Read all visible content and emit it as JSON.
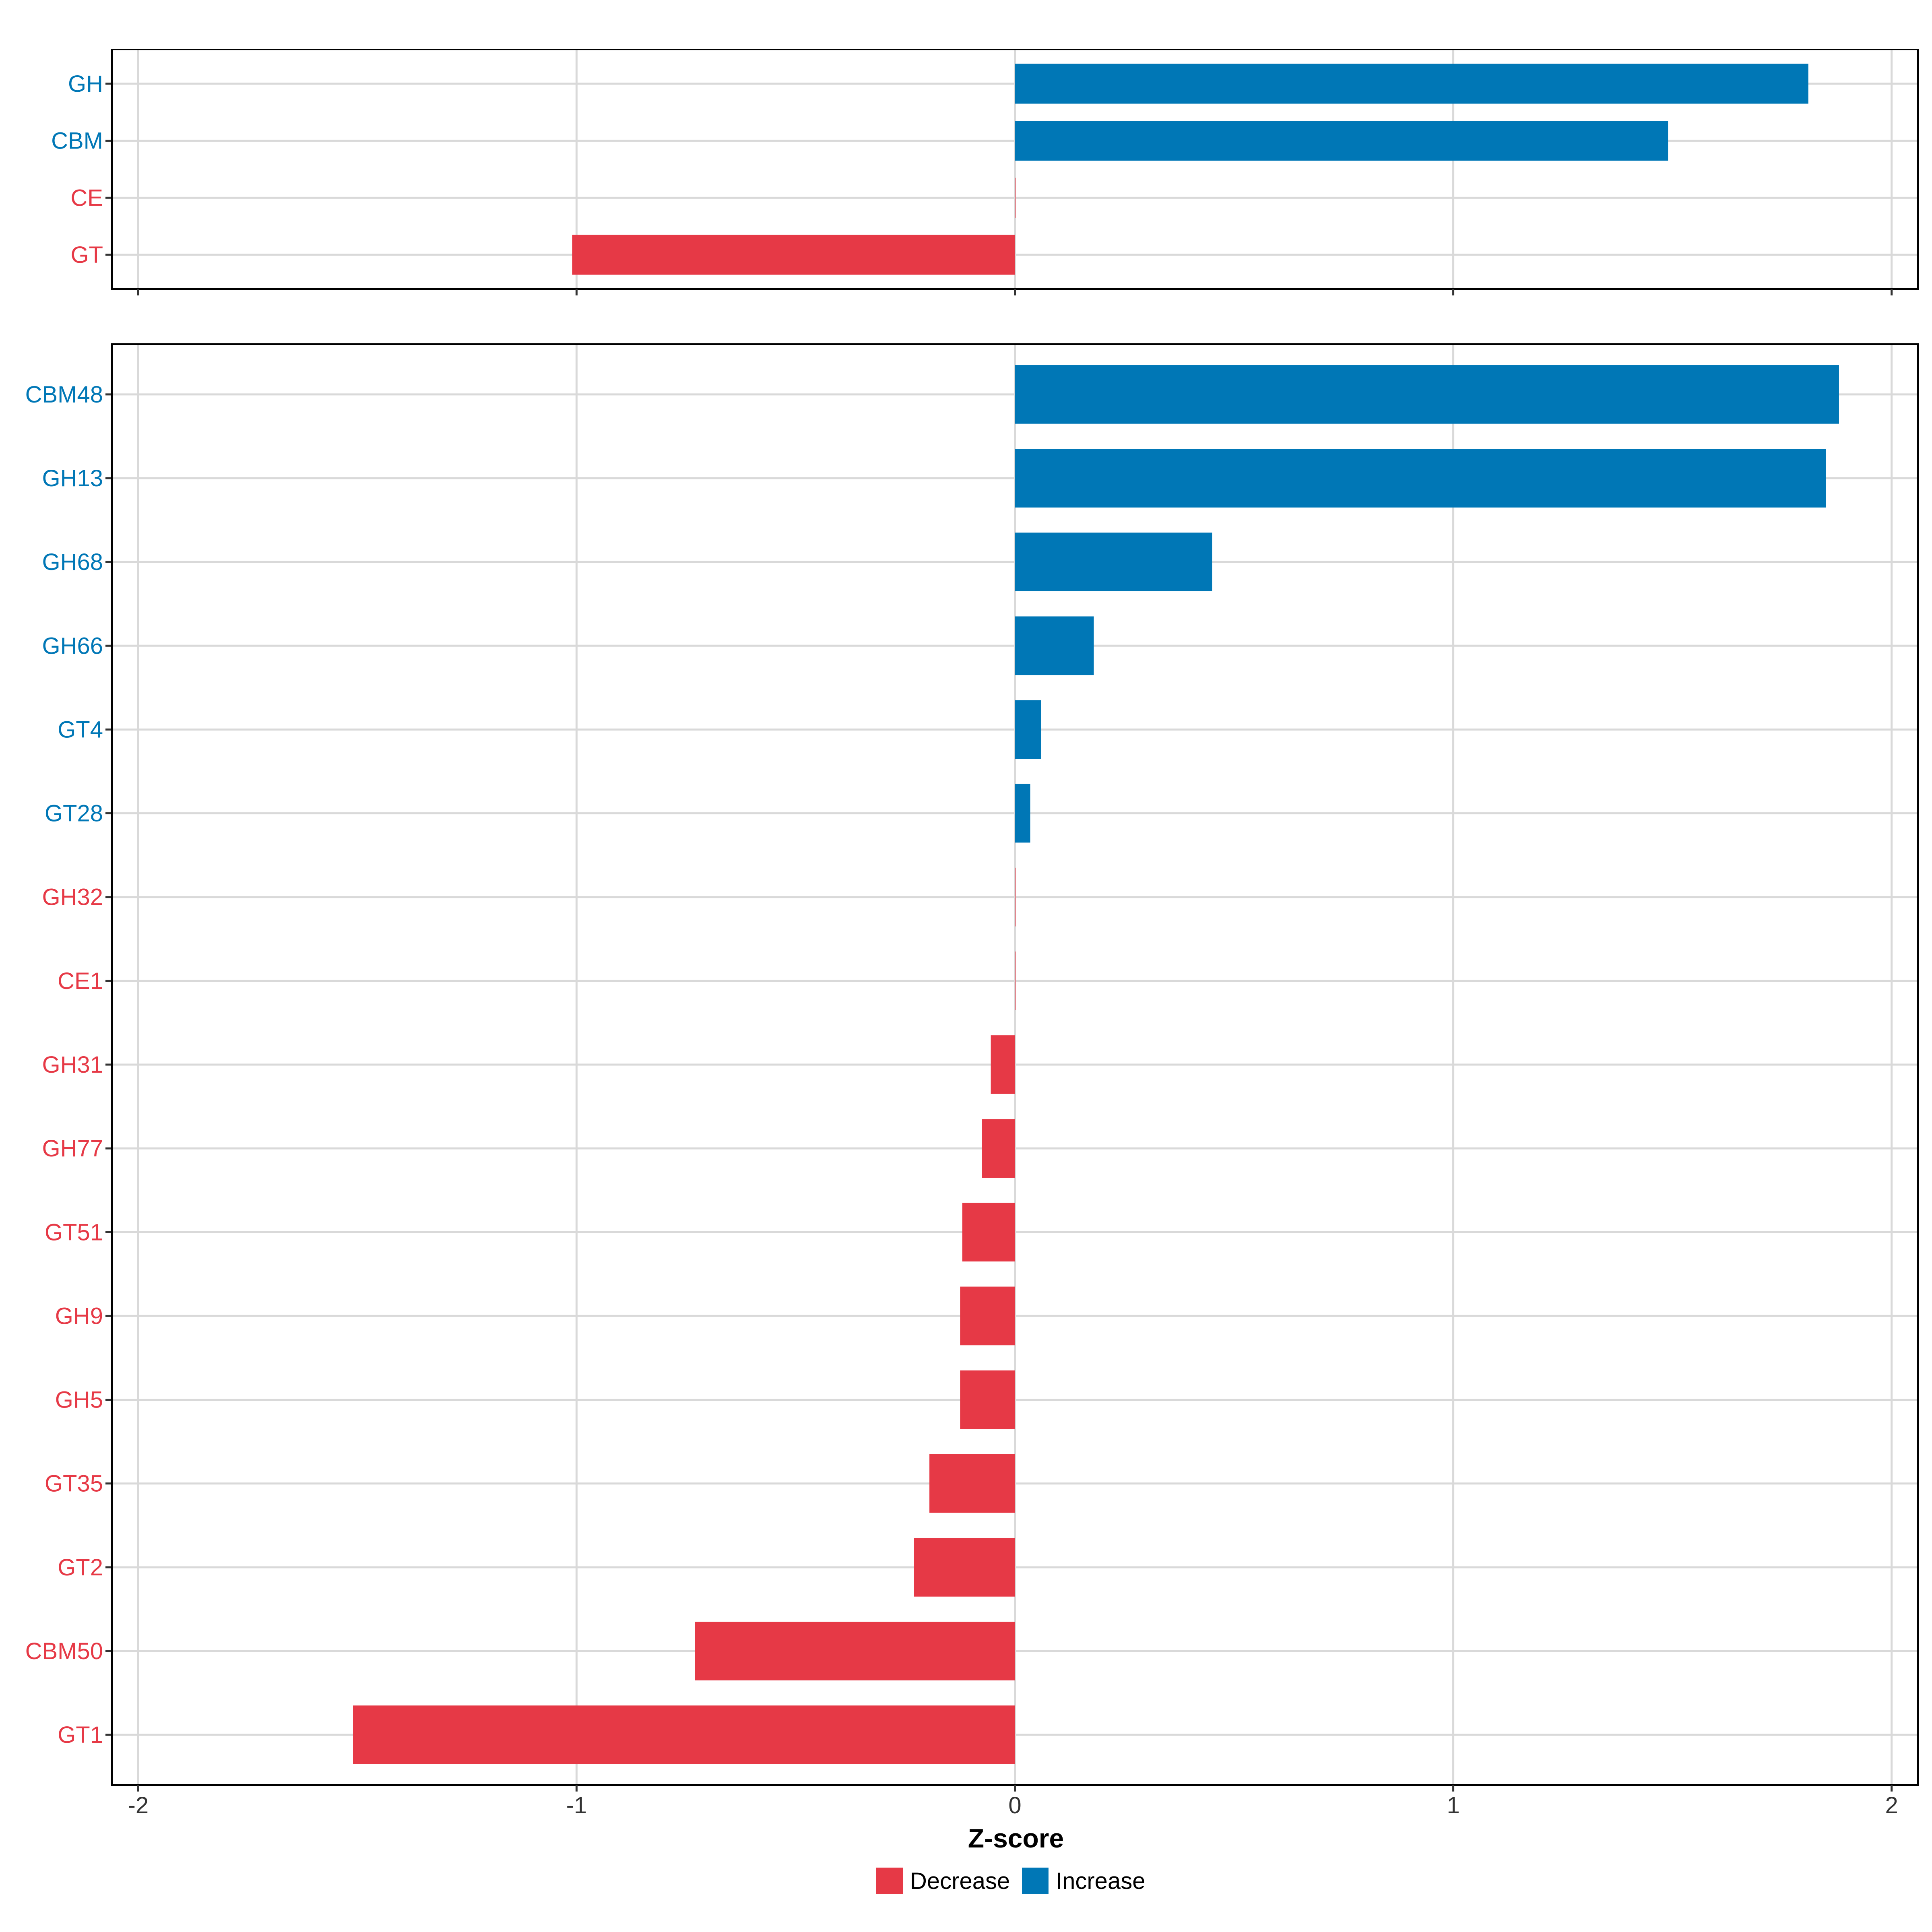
{
  "colors": {
    "decrease": "#E63946",
    "increase": "#0077B6",
    "grid": "#D9D9D9",
    "axis_text": "#333333",
    "panel_border": "#000000"
  },
  "chart_data": [
    {
      "type": "bar",
      "orientation": "horizontal",
      "panel": "top",
      "categories": [
        "GH",
        "CBM",
        "CE",
        "GT"
      ],
      "values": [
        1.81,
        1.49,
        0.0,
        -1.01
      ],
      "direction": [
        "Increase",
        "Increase",
        "Decrease",
        "Decrease"
      ],
      "xlim": [
        -2.06,
        2.06
      ],
      "xticks": [
        -2,
        -1,
        0,
        1,
        2
      ],
      "grid": true
    },
    {
      "type": "bar",
      "orientation": "horizontal",
      "panel": "bottom",
      "categories": [
        "CBM48",
        "GH13",
        "GH68",
        "GH66",
        "GT4",
        "GT28",
        "GH32",
        "CE1",
        "GH31",
        "GH77",
        "GT51",
        "GH9",
        "GH5",
        "GT35",
        "GT2",
        "CBM50",
        "GT1"
      ],
      "values": [
        1.88,
        1.85,
        0.45,
        0.18,
        0.06,
        0.035,
        0.0,
        0.0,
        -0.055,
        -0.075,
        -0.12,
        -0.125,
        -0.125,
        -0.195,
        -0.23,
        -0.73,
        -1.51
      ],
      "direction": [
        "Increase",
        "Increase",
        "Increase",
        "Increase",
        "Increase",
        "Increase",
        "Decrease",
        "Decrease",
        "Decrease",
        "Decrease",
        "Decrease",
        "Decrease",
        "Decrease",
        "Decrease",
        "Decrease",
        "Decrease",
        "Decrease"
      ],
      "xlim": [
        -2.06,
        2.06
      ],
      "xticks": [
        -2,
        -1,
        0,
        1,
        2
      ],
      "xtick_labels": [
        "-2",
        "-1",
        "0",
        "1",
        "2"
      ],
      "xlabel": "Z-score",
      "grid": true
    }
  ],
  "legend": {
    "placement": "bottom",
    "entries": [
      {
        "label": "Decrease",
        "key": "decrease"
      },
      {
        "label": "Increase",
        "key": "increase"
      }
    ]
  }
}
